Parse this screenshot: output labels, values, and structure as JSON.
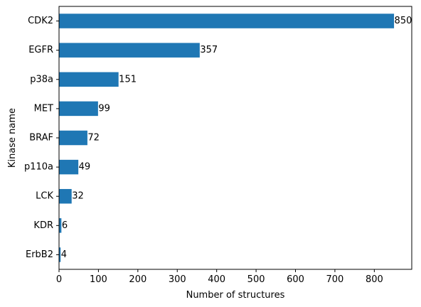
{
  "chart_data": {
    "type": "bar",
    "orientation": "horizontal",
    "categories": [
      "CDK2",
      "EGFR",
      "p38a",
      "MET",
      "BRAF",
      "p110a",
      "LCK",
      "KDR",
      "ErbB2"
    ],
    "values": [
      850,
      357,
      151,
      99,
      72,
      49,
      32,
      6,
      4
    ],
    "data_labels": [
      "850",
      "357",
      "151",
      "99",
      "72",
      "49",
      "32",
      "6",
      "4"
    ],
    "xlabel": "Number of structures",
    "ylabel": "Kinase name",
    "xlim": [
      0,
      895
    ],
    "xticks": [
      "0",
      "100",
      "200",
      "300",
      "400",
      "500",
      "600",
      "700",
      "800"
    ],
    "grid": false,
    "bar_color": "#1f77b4"
  }
}
